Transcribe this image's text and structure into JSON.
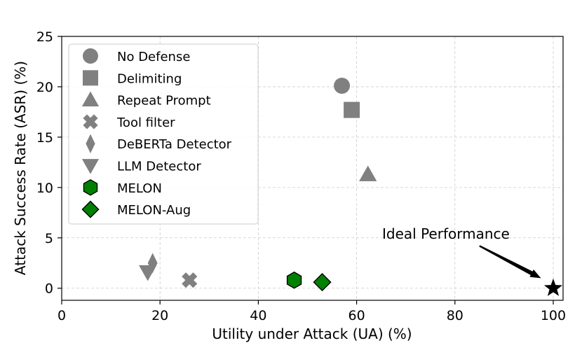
{
  "chart_data": {
    "type": "scatter",
    "title": "",
    "xlabel": "Utility under Attack (UA) (%)",
    "ylabel": "Attack Success Rate (ASR) (%)",
    "xlim": [
      0,
      102
    ],
    "ylim": [
      -1.2,
      25
    ],
    "xticks": [
      "0",
      "20",
      "40",
      "60",
      "80",
      "100"
    ],
    "yticks": [
      "0",
      "5",
      "10",
      "15",
      "20",
      "25"
    ],
    "grid": true,
    "legend_position": "top-left",
    "colors": {
      "baseline": "#808080",
      "melon": "#008000",
      "edge": "#000000"
    },
    "series": [
      {
        "name": "No Defense",
        "marker": "circle",
        "color": "#808080",
        "x": 57,
        "y": 20.1
      },
      {
        "name": "Delimiting",
        "marker": "square",
        "color": "#808080",
        "x": 59,
        "y": 17.7
      },
      {
        "name": "Repeat Prompt",
        "marker": "triangle-up",
        "color": "#808080",
        "x": 62.3,
        "y": 11.3
      },
      {
        "name": "Tool filter",
        "marker": "x",
        "color": "#808080",
        "x": 26,
        "y": 0.8
      },
      {
        "name": "DeBERTa Detector",
        "marker": "thin-diamond",
        "color": "#808080",
        "x": 18.5,
        "y": 2.5
      },
      {
        "name": "LLM Detector",
        "marker": "triangle-down",
        "color": "#808080",
        "x": 17.5,
        "y": 1.6
      },
      {
        "name": "MELON",
        "marker": "hexagon",
        "color": "#008000",
        "x": 47.3,
        "y": 0.8
      },
      {
        "name": "MELON-Aug",
        "marker": "diamond",
        "color": "#008000",
        "x": 53,
        "y": 0.6
      }
    ],
    "ideal_point": {
      "x": 100,
      "y": 0,
      "marker": "star",
      "color": "#000000"
    },
    "annotations": [
      {
        "text": "Ideal Performance",
        "arrow_from": [
          85,
          4.2
        ],
        "arrow_to": [
          97.5,
          1.0
        ]
      }
    ]
  }
}
